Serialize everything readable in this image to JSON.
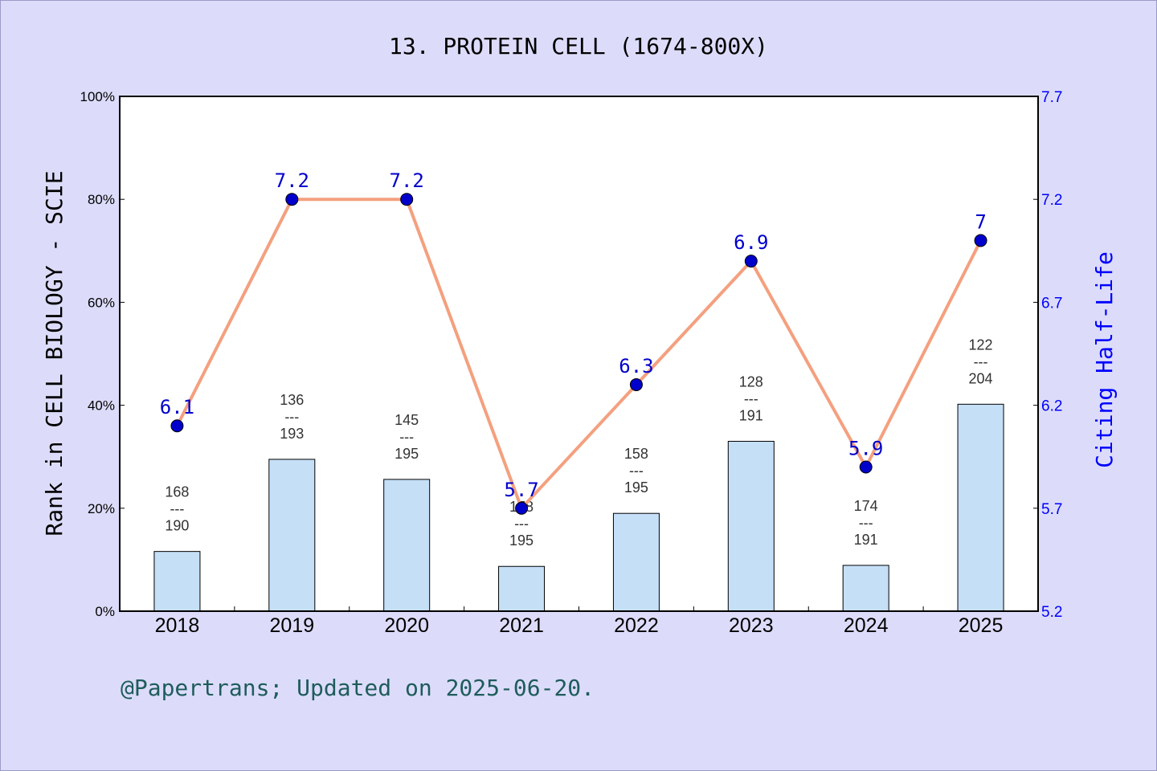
{
  "chart_data": {
    "type": "bar",
    "title": "13. PROTEIN CELL (1674-800X)",
    "ylabel": "Rank in CELL BIOLOGY - SCIE",
    "y2label": "Citing Half-Life",
    "categories": [
      "2018",
      "2019",
      "2020",
      "2021",
      "2022",
      "2023",
      "2024",
      "2025"
    ],
    "ylim": [
      0,
      100
    ],
    "y_ticks": [
      "0%",
      "20%",
      "40%",
      "60%",
      "80%",
      "100%"
    ],
    "y2lim": [
      5.2,
      7.7
    ],
    "y2_ticks": [
      "5.2",
      "5.7",
      "6.2",
      "6.7",
      "7.2",
      "7.7"
    ],
    "series": [
      {
        "type": "bar",
        "values_percent": [
          11.6,
          29.5,
          25.6,
          8.7,
          19.0,
          33.0,
          8.9,
          40.2
        ],
        "rank": [
          "168",
          "136",
          "145",
          "178",
          "158",
          "128",
          "174",
          "122"
        ],
        "total": [
          "190",
          "193",
          "195",
          "195",
          "195",
          "191",
          "191",
          "204"
        ],
        "separator": "---"
      },
      {
        "type": "line",
        "axis": "right",
        "values": [
          6.1,
          7.2,
          7.2,
          5.7,
          6.3,
          6.9,
          5.9,
          7.0
        ],
        "labels": [
          "6.1",
          "7.2",
          "7.2",
          "5.7",
          "6.3",
          "6.9",
          "5.9",
          "7"
        ]
      }
    ],
    "grid": false,
    "colors": {
      "background": "#dcdcfa",
      "plot": "#ffffff",
      "bar": "#c5dff7",
      "line": "#f4a07f",
      "marker": "#0000cc",
      "right_axis": "#0000ff",
      "footer": "#1f5c5c"
    }
  },
  "footer": "@Papertrans; Updated on 2025-06-20."
}
